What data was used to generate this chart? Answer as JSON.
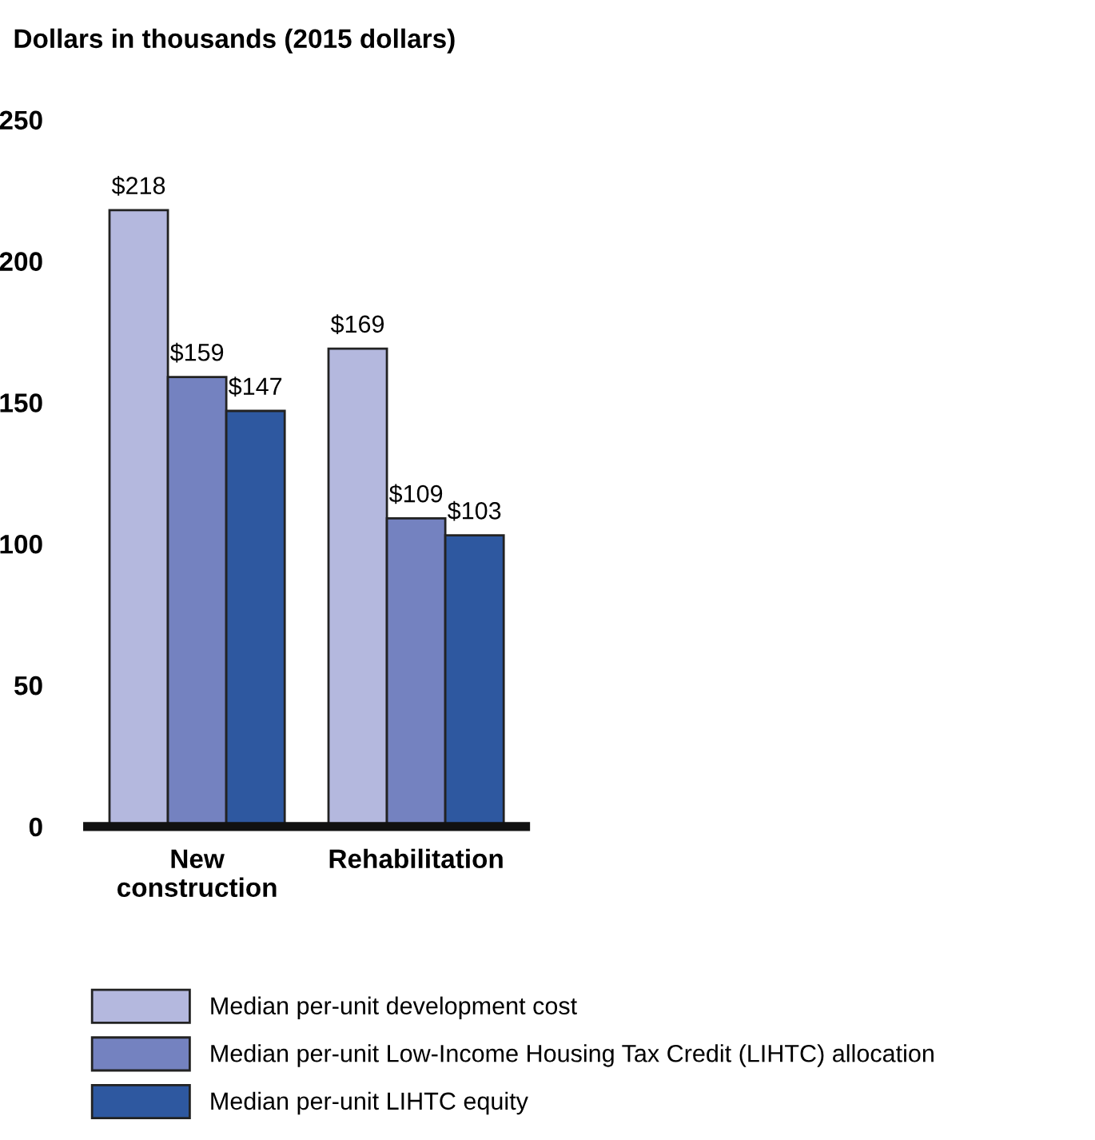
{
  "chart_data": {
    "type": "bar",
    "title": "Dollars in thousands (2015 dollars)",
    "categories": [
      "New\nconstruction",
      "Rehabilitation"
    ],
    "series": [
      {
        "name": "Median per-unit development cost",
        "color": "#b4b8de",
        "values": [
          218,
          169
        ],
        "value_labels": [
          "$218",
          "$169"
        ]
      },
      {
        "name": "Median per-unit Low-Income Housing Tax Credit (LIHTC) allocation",
        "color": "#7482c0",
        "values": [
          159,
          109
        ],
        "value_labels": [
          "$159",
          "$109"
        ]
      },
      {
        "name": "Median per-unit LIHTC equity",
        "color": "#2e58a0",
        "values": [
          147,
          103
        ],
        "value_labels": [
          "$147",
          "$103"
        ]
      }
    ],
    "ylim": [
      0,
      250
    ],
    "yticks": [
      0,
      50,
      100,
      150,
      200,
      250
    ],
    "grid": false,
    "legend": "bottom"
  }
}
